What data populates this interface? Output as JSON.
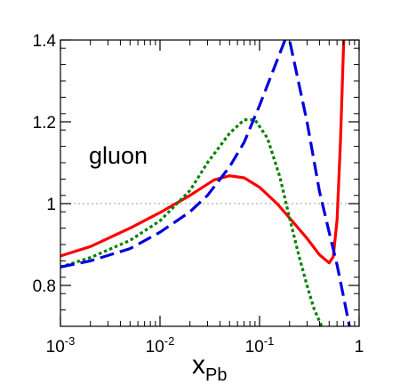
{
  "chart_data": {
    "type": "line",
    "title": "",
    "xlabel": "x",
    "xlabel_sub": "Pb",
    "ylabel": "",
    "xscale": "log",
    "xlim": [
      0.001,
      1
    ],
    "ylim": [
      0.7,
      1.4
    ],
    "grid": false,
    "legend": "none",
    "annotation": "gluon",
    "x_ticks": [
      {
        "value": 0.001,
        "base": "10",
        "exp": "-3"
      },
      {
        "value": 0.01,
        "base": "10",
        "exp": "-2"
      },
      {
        "value": 0.1,
        "base": "10",
        "exp": "-1"
      },
      {
        "value": 1,
        "base": "1",
        "exp": ""
      }
    ],
    "y_ticks": [
      {
        "value": 0.8,
        "label": "0.8"
      },
      {
        "value": 1.0,
        "label": "1"
      },
      {
        "value": 1.2,
        "label": "1.2"
      },
      {
        "value": 1.4,
        "label": "1.4"
      }
    ],
    "reference_line": {
      "y": 1.0,
      "color": "#b0b0b0",
      "style": "dotted"
    },
    "series": [
      {
        "color": "#ff0000",
        "style": "solid",
        "x": [
          0.001,
          0.002,
          0.005,
          0.01,
          0.02,
          0.035,
          0.05,
          0.07,
          0.1,
          0.15,
          0.2,
          0.3,
          0.4,
          0.5,
          0.55,
          0.6,
          0.65,
          0.7
        ],
        "y": [
          0.872,
          0.895,
          0.94,
          0.978,
          1.02,
          1.058,
          1.068,
          1.063,
          1.04,
          1.0,
          0.965,
          0.915,
          0.875,
          0.855,
          0.87,
          0.96,
          1.15,
          1.4
        ]
      },
      {
        "color": "#008000",
        "style": "dotted",
        "x": [
          0.001,
          0.002,
          0.005,
          0.01,
          0.02,
          0.03,
          0.05,
          0.07,
          0.09,
          0.12,
          0.16,
          0.2,
          0.25,
          0.3,
          0.35,
          0.42
        ],
        "y": [
          0.845,
          0.868,
          0.91,
          0.958,
          1.032,
          1.1,
          1.172,
          1.205,
          1.205,
          1.16,
          1.065,
          0.965,
          0.87,
          0.8,
          0.745,
          0.7
        ]
      },
      {
        "color": "#0000dd",
        "style": "dashed",
        "x": [
          0.001,
          0.002,
          0.005,
          0.01,
          0.02,
          0.03,
          0.05,
          0.07,
          0.1,
          0.15,
          0.18,
          0.2,
          0.3,
          0.4,
          0.5,
          0.6,
          0.7,
          0.8
        ],
        "y": [
          0.845,
          0.86,
          0.89,
          0.93,
          0.98,
          1.02,
          1.09,
          1.15,
          1.24,
          1.35,
          1.4,
          1.4,
          1.2,
          1.03,
          0.93,
          0.85,
          0.77,
          0.7
        ]
      }
    ]
  }
}
